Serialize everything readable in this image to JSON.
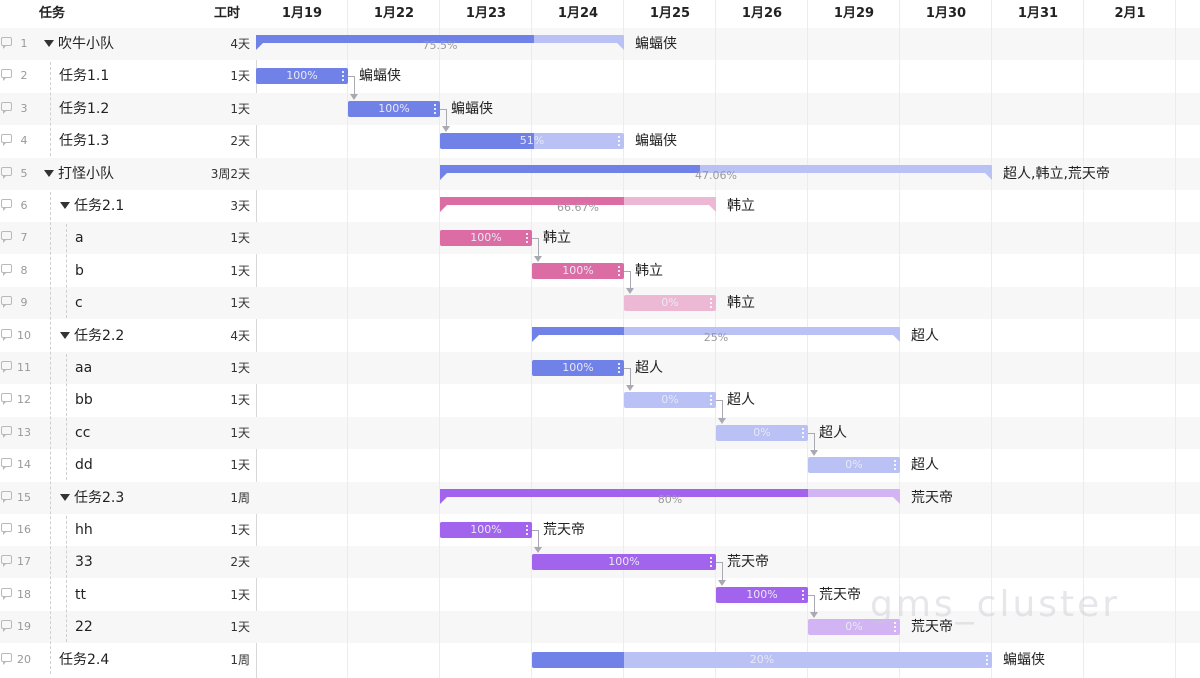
{
  "header": {
    "task_col": "任务",
    "duration_col": "工时"
  },
  "dates": [
    "1月19",
    "1月22",
    "1月23",
    "1月24",
    "1月25",
    "1月26",
    "1月29",
    "1月30",
    "1月31",
    "2月1"
  ],
  "colors": {
    "blue": "#7082e8",
    "blue_light": "#b9c1f5",
    "pink": "#db6da4",
    "pink_light": "#ecb8d3",
    "purple": "#a264ec",
    "purple_light": "#d2b3f4"
  },
  "rows": [
    {
      "num": "1",
      "name": "吹牛小队",
      "duration": "4天",
      "level": 0,
      "toggle": true,
      "summary": true,
      "start": 0,
      "end": 4,
      "progress": "75.5%",
      "frac": 0.755,
      "color": "blue",
      "label": "蝙蝠侠"
    },
    {
      "num": "2",
      "name": "任务1.1",
      "duration": "1天",
      "level": 1,
      "start": 0,
      "end": 1,
      "progress": "100%",
      "frac": 1,
      "color": "blue",
      "label": "蝙蝠侠"
    },
    {
      "num": "3",
      "name": "任务1.2",
      "duration": "1天",
      "level": 1,
      "start": 1,
      "end": 2,
      "progress": "100%",
      "frac": 1,
      "color": "blue",
      "label": "蝙蝠侠"
    },
    {
      "num": "4",
      "name": "任务1.3",
      "duration": "2天",
      "level": 1,
      "start": 2,
      "end": 4,
      "progress": "51%",
      "frac": 0.51,
      "color": "blue",
      "label": "蝙蝠侠"
    },
    {
      "num": "5",
      "name": "打怪小队",
      "duration": "3周2天",
      "level": 0,
      "toggle": true,
      "summary": true,
      "start": 2,
      "end": 8,
      "progress": "47.06%",
      "frac": 0.4706,
      "color": "blue",
      "label": "超人,韩立,荒天帝"
    },
    {
      "num": "6",
      "name": "任务2.1",
      "duration": "3天",
      "level": 1,
      "toggle": true,
      "summary": true,
      "start": 2,
      "end": 5,
      "progress": "66.67%",
      "frac": 0.6667,
      "color": "pink",
      "label": "韩立"
    },
    {
      "num": "7",
      "name": "a",
      "duration": "1天",
      "level": 2,
      "start": 2,
      "end": 3,
      "progress": "100%",
      "frac": 1,
      "color": "pink",
      "label": "韩立"
    },
    {
      "num": "8",
      "name": "b",
      "duration": "1天",
      "level": 2,
      "start": 3,
      "end": 4,
      "progress": "100%",
      "frac": 1,
      "color": "pink",
      "label": "韩立"
    },
    {
      "num": "9",
      "name": "c",
      "duration": "1天",
      "level": 2,
      "start": 4,
      "end": 5,
      "progress": "0%",
      "frac": 0,
      "color": "pink",
      "label": "韩立"
    },
    {
      "num": "10",
      "name": "任务2.2",
      "duration": "4天",
      "level": 1,
      "toggle": true,
      "summary": true,
      "start": 3,
      "end": 7,
      "progress": "25%",
      "frac": 0.25,
      "color": "blue",
      "label": "超人"
    },
    {
      "num": "11",
      "name": "aa",
      "duration": "1天",
      "level": 2,
      "start": 3,
      "end": 4,
      "progress": "100%",
      "frac": 1,
      "color": "blue",
      "label": "超人"
    },
    {
      "num": "12",
      "name": "bb",
      "duration": "1天",
      "level": 2,
      "start": 4,
      "end": 5,
      "progress": "0%",
      "frac": 0,
      "color": "blue",
      "label": "超人"
    },
    {
      "num": "13",
      "name": "cc",
      "duration": "1天",
      "level": 2,
      "start": 5,
      "end": 6,
      "progress": "0%",
      "frac": 0,
      "color": "blue",
      "label": "超人"
    },
    {
      "num": "14",
      "name": "dd",
      "duration": "1天",
      "level": 2,
      "start": 6,
      "end": 7,
      "progress": "0%",
      "frac": 0,
      "color": "blue",
      "label": "超人"
    },
    {
      "num": "15",
      "name": "任务2.3",
      "duration": "1周",
      "level": 1,
      "toggle": true,
      "summary": true,
      "start": 2,
      "end": 7,
      "progress": "80%",
      "frac": 0.8,
      "color": "purple",
      "label": "荒天帝"
    },
    {
      "num": "16",
      "name": "hh",
      "duration": "1天",
      "level": 2,
      "start": 2,
      "end": 3,
      "progress": "100%",
      "frac": 1,
      "color": "purple",
      "label": "荒天帝"
    },
    {
      "num": "17",
      "name": "33",
      "duration": "2天",
      "level": 2,
      "start": 3,
      "end": 5,
      "progress": "100%",
      "frac": 1,
      "color": "purple",
      "label": "荒天帝"
    },
    {
      "num": "18",
      "name": "tt",
      "duration": "1天",
      "level": 2,
      "start": 5,
      "end": 6,
      "progress": "100%",
      "frac": 1,
      "color": "purple",
      "label": "荒天帝"
    },
    {
      "num": "19",
      "name": "22",
      "duration": "1天",
      "level": 2,
      "start": 6,
      "end": 7,
      "progress": "0%",
      "frac": 0,
      "color": "purple",
      "label": "荒天帝"
    },
    {
      "num": "20",
      "name": "任务2.4",
      "duration": "1周",
      "level": 1,
      "start": 3,
      "end": 8,
      "progress": "20%",
      "frac": 0.2,
      "color": "blue",
      "label": "蝙蝠侠"
    }
  ],
  "links": [
    [
      1,
      2
    ],
    [
      2,
      3
    ],
    [
      6,
      7
    ],
    [
      7,
      8
    ],
    [
      10,
      11
    ],
    [
      11,
      12
    ],
    [
      12,
      13
    ],
    [
      15,
      16
    ],
    [
      16,
      17
    ],
    [
      17,
      18
    ]
  ],
  "watermark": "gms_cluster"
}
